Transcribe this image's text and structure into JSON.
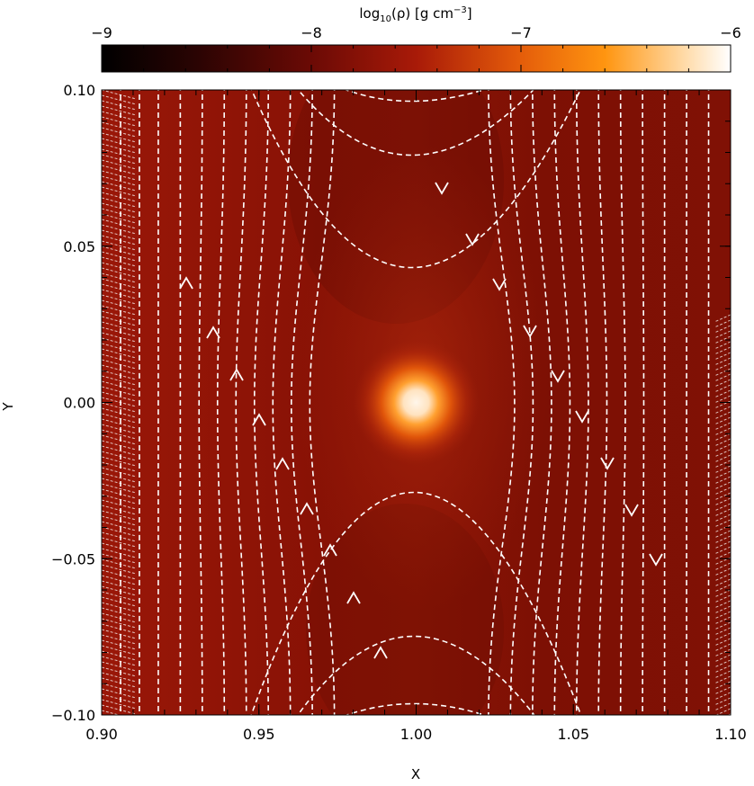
{
  "chart_data": {
    "type": "heatmap",
    "title": "",
    "xlabel": "X",
    "ylabel": "Y",
    "xlim": [
      0.9,
      1.1
    ],
    "ylim": [
      -0.1,
      0.1
    ],
    "x_ticks": [
      0.9,
      0.95,
      1.0,
      1.05,
      1.1
    ],
    "x_tick_labels": [
      "0.90",
      "0.95",
      "1.00",
      "1.05",
      "1.10"
    ],
    "y_ticks": [
      0.1,
      0.05,
      0.0,
      -0.05,
      -0.1
    ],
    "y_tick_labels": [
      "0.10",
      "0.05",
      "0.00",
      "−0.05",
      "−0.10"
    ],
    "colorbar": {
      "label_text": "log",
      "label_sub": "10",
      "label_rest": "(ρ) [g cm",
      "label_sup": "−3",
      "label_end": "]",
      "range": [
        -9,
        -6
      ],
      "ticks": [
        -9,
        -8,
        -7,
        -6
      ],
      "tick_labels": [
        "−9",
        "−8",
        "−7",
        "−6"
      ],
      "colors": [
        "#000000",
        "#6a0a05",
        "#a81a08",
        "#ff8c00",
        "#ffffff"
      ]
    },
    "hot_spot": {
      "x": 1.0,
      "y": 0.0,
      "value": -6
    },
    "background_level": -7.9,
    "streamlines": "dashed white field lines flowing up on the left (x<0.99) and down on the right (x>1.01), diverging around the central dense spot"
  }
}
